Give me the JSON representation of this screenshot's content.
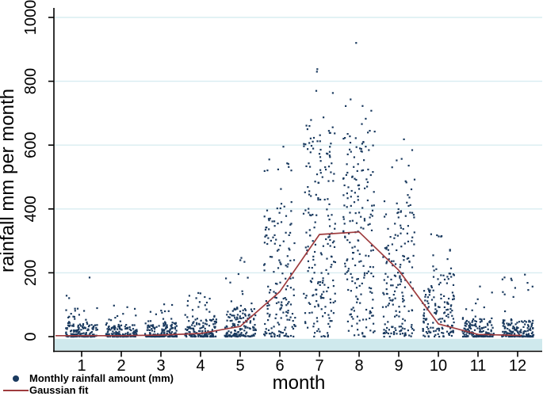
{
  "chart_data": {
    "type": "scatter",
    "title": "",
    "xlabel": "month",
    "ylabel": "rainfall mm per month",
    "x_ticks": [
      "1",
      "2",
      "3",
      "4",
      "5",
      "6",
      "7",
      "8",
      "9",
      "10",
      "11",
      "12"
    ],
    "y_ticks": [
      0,
      200,
      400,
      600,
      800,
      1000
    ],
    "xlim": [
      0.3,
      12.64
    ],
    "ylim": [
      -50,
      1030
    ],
    "grid": {
      "axis": "y",
      "color": "#d8edf1"
    },
    "zero_band": {
      "from": -7,
      "to": -43,
      "color": "#cfe9ed"
    },
    "legend_position": "bottom-left",
    "legend": [
      {
        "label": "Monthly rainfall amount (mm)",
        "marker": "dot",
        "color": "#1a3a5f"
      },
      {
        "label": "Gaussian fit",
        "marker": "line",
        "color": "#9e3b3d"
      }
    ],
    "series": [
      {
        "name": "Monthly rainfall amount (mm)",
        "type": "jittered_scatter",
        "color": "#1a3a5f",
        "marker_size_px": 2.2,
        "jitter_halfwidth_months": 0.4,
        "monthly_distributions": [
          {
            "month": 1,
            "n": 160,
            "dense_max": 45,
            "shape": 2.4,
            "tail_frac": 0.1,
            "tail_max": 130,
            "outliers": [
              185
            ]
          },
          {
            "month": 2,
            "n": 150,
            "dense_max": 40,
            "shape": 2.4,
            "tail_frac": 0.09,
            "tail_max": 110,
            "outliers": []
          },
          {
            "month": 3,
            "n": 160,
            "dense_max": 45,
            "shape": 2.4,
            "tail_frac": 0.1,
            "tail_max": 120,
            "outliers": []
          },
          {
            "month": 4,
            "n": 160,
            "dense_max": 55,
            "shape": 2.3,
            "tail_frac": 0.1,
            "tail_max": 155,
            "outliers": []
          },
          {
            "month": 5,
            "n": 160,
            "dense_max": 90,
            "shape": 2.0,
            "tail_frac": 0.12,
            "tail_max": 250,
            "outliers": []
          },
          {
            "month": 6,
            "n": 170,
            "dense_max": 400,
            "shape": 1.7,
            "tail_frac": 0.06,
            "tail_max": 560,
            "outliers": [
              595
            ]
          },
          {
            "month": 7,
            "n": 200,
            "dense_max": 640,
            "shape": 1.3,
            "tail_frac": 0.05,
            "tail_max": 780,
            "outliers": [
              830,
              838
            ]
          },
          {
            "month": 8,
            "n": 200,
            "dense_max": 620,
            "shape": 1.3,
            "tail_frac": 0.05,
            "tail_max": 745,
            "outliers": [
              920
            ]
          },
          {
            "month": 9,
            "n": 180,
            "dense_max": 430,
            "shape": 1.5,
            "tail_frac": 0.05,
            "tail_max": 600,
            "outliers": [
              618
            ]
          },
          {
            "month": 10,
            "n": 160,
            "dense_max": 210,
            "shape": 1.9,
            "tail_frac": 0.08,
            "tail_max": 345,
            "outliers": []
          },
          {
            "month": 11,
            "n": 150,
            "dense_max": 50,
            "shape": 2.4,
            "tail_frac": 0.08,
            "tail_max": 160,
            "outliers": []
          },
          {
            "month": 12,
            "n": 155,
            "dense_max": 55,
            "shape": 2.4,
            "tail_frac": 0.08,
            "tail_max": 195,
            "outliers": []
          }
        ]
      },
      {
        "name": "Gaussian fit",
        "type": "line",
        "color": "#9e3b3d",
        "x": [
          1,
          2,
          3,
          4,
          5,
          6,
          7,
          8,
          9,
          10,
          11,
          12
        ],
        "y": [
          3,
          3,
          5,
          10,
          32,
          141,
          320,
          328,
          208,
          40,
          7,
          4
        ]
      }
    ]
  },
  "colors": {
    "background": "#ffffff",
    "axis": "#000000",
    "text": "#000000"
  }
}
